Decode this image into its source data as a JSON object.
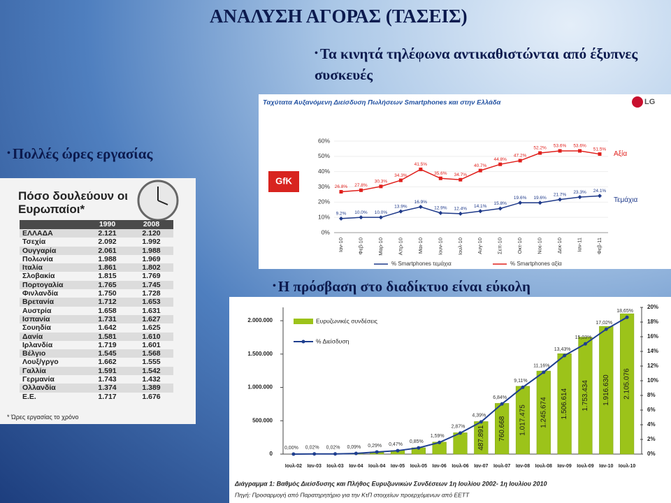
{
  "title": "ΑΝΑΛΥΣΗ ΑΓΟΡΑΣ (ΤΑΣΕΙΣ)",
  "bullets": [
    "Τα κινητά τηλέφωνα αντικαθιστώνται από έξυπνες συσκευές",
    "Πολλές ώρες εργασίας",
    "Η πρόσβαση στο διαδίκτυο είναι εύκολη"
  ],
  "table": {
    "title": "Πόσο δουλεύουν οι Ευρωπαίοι*",
    "header": [
      "1990",
      "2008"
    ],
    "rows": [
      [
        "ΕΛΛΑΔΑ",
        "2.121",
        "2.120"
      ],
      [
        "Τσεχία",
        "2.092",
        "1.992"
      ],
      [
        "Ουγγαρία",
        "2.061",
        "1.988"
      ],
      [
        "Πολωνία",
        "1.988",
        "1.969"
      ],
      [
        "Ιταλία",
        "1.861",
        "1.802"
      ],
      [
        "Σλοβακία",
        "1.815",
        "1.769"
      ],
      [
        "Πορτογαλία",
        "1.765",
        "1.745"
      ],
      [
        "Φινλανδία",
        "1.750",
        "1.728"
      ],
      [
        "Βρετανία",
        "1.712",
        "1.653"
      ],
      [
        "Αυστρία",
        "1.658",
        "1.631"
      ],
      [
        "Ισπανία",
        "1.731",
        "1.627"
      ],
      [
        "Σουηδία",
        "1.642",
        "1.625"
      ],
      [
        "Δανία",
        "1.581",
        "1.610"
      ],
      [
        "Ιρλανδία",
        "1.719",
        "1.601"
      ],
      [
        "Βέλγιο",
        "1.545",
        "1.568"
      ],
      [
        "Λουξ/γργο",
        "1.662",
        "1.555"
      ],
      [
        "Γαλλία",
        "1.591",
        "1.542"
      ],
      [
        "Γερμανία",
        "1.743",
        "1.432"
      ],
      [
        "Ολλανδία",
        "1.374",
        "1.389"
      ],
      [
        "Ε.Ε.",
        "1.717",
        "1.676"
      ]
    ],
    "note": "* Ώρες εργασίας το χρόνο"
  },
  "chart_data": [
    {
      "type": "line",
      "title": "Ταχύτατα Αυξανόμενη Διείσδυση Πωλήσεων Smartphones και στην Ελλάδα",
      "brand": "LG",
      "source": "GfK",
      "categories": [
        "Ιαν-10",
        "Φεβ-10",
        "Μαρ-10",
        "Απρ-10",
        "Μαι-10",
        "Ιουν-10",
        "Ιουλ-10",
        "Αυγ-10",
        "Σεπ-10",
        "Οκτ-10",
        "Νοε-10",
        "Δεκ-10",
        "Ιαν-11",
        "Φεβ-11"
      ],
      "series": [
        {
          "name": "% Smartphones τεμάχια",
          "color": "#1f3a8a",
          "end_label": "Τεμάχια",
          "values": [
            9.2,
            10.0,
            10.0,
            13.9,
            16.9,
            12.9,
            12.4,
            14.1,
            15.8,
            19.6,
            19.6,
            21.7,
            23.3,
            24.1
          ],
          "value_labels": [
            "9.2%",
            "10.0%",
            "10.0%",
            "13.9%",
            "16.9%",
            "12.9%",
            "12.4%",
            "14.1%",
            "15.8%",
            "19.6%",
            "19.6%",
            "21.7%",
            "23.3%",
            "24.1%"
          ]
        },
        {
          "name": "% Smartphones αξία",
          "color": "#e0201c",
          "end_label": "Αξία",
          "values": [
            26.8,
            27.8,
            30.3,
            34.3,
            41.5,
            35.6,
            34.7,
            40.7,
            44.8,
            47.2,
            52.2,
            53.6,
            53.6,
            51.5
          ],
          "value_labels": [
            "26.8%",
            "27.8%",
            "30.3%",
            "34.3%",
            "41.5%",
            "35.6%",
            "34.7%",
            "40.7%",
            "44.8%",
            "47.2%",
            "52.2%",
            "53.6%",
            "53.6%",
            "51.5%"
          ]
        }
      ],
      "ylim": [
        0,
        60
      ],
      "yticks": [
        {
          "value": 0,
          "label": "0%"
        },
        {
          "value": 10,
          "label": "10%"
        },
        {
          "value": 20,
          "label": "20%"
        },
        {
          "value": 30,
          "label": "30%"
        },
        {
          "value": 40,
          "label": "40%"
        },
        {
          "value": 50,
          "label": "50%"
        },
        {
          "value": 60,
          "label": "60%"
        }
      ]
    },
    {
      "type": "bar",
      "caption": "Διάγραμμα 1: Βαθμός Διείσδυσης και Πλήθος Ευρυζωνικών Συνδέσεων 1η Ιουλίου 2002- 1η Ιουλίου 2010",
      "source": "Πηγή: Προσαρμογή από Παρατηρητήριο για την ΚτΠ στοιχείων προερχόμενων από ΕΕΤΤ",
      "categories": [
        "Ιουλ-02",
        "Ιαν-03",
        "Ιουλ-03",
        "Ιαν-04",
        "Ιουλ-04",
        "Ιαν-05",
        "Ιουλ-05",
        "Ιαν-06",
        "Ιουλ-06",
        "Ιαν-07",
        "Ιουλ-07",
        "Ιαν-08",
        "Ιουλ-08",
        "Ιαν-09",
        "Ιουλ-09",
        "Ιαν-10",
        "Ιουλ-10"
      ],
      "series": [
        {
          "name": "Ευρυζωνικές συνδέσεις",
          "color": "#9cc31a",
          "values": [
            0,
            2000,
            2000,
            10000,
            33000,
            53000,
            95000,
            180000,
            320000,
            487891,
            760668,
            1017475,
            1245674,
            1506614,
            1753434,
            1916630,
            2105076
          ],
          "value_labels": [
            null,
            null,
            null,
            null,
            null,
            null,
            null,
            null,
            null,
            "487.891",
            "760.668",
            "1.017.475",
            "1.245.674",
            "1.506.614",
            "1.753.434",
            "1.916.630",
            "2.105.076"
          ]
        },
        {
          "name": "% Διείσδυση",
          "color": "#1f3f8f",
          "axis": "y2",
          "values": [
            0.0,
            0.02,
            0.02,
            0.09,
            0.29,
            0.47,
            0.85,
            1.59,
            2.87,
            4.39,
            6.84,
            9.11,
            11.16,
            13.43,
            15.03,
            17.02,
            18.65
          ],
          "value_labels": [
            "0,00%",
            "0,02%",
            "0,02%",
            "0,09%",
            "0,29%",
            "0,47%",
            "0,85%",
            "1,59%",
            "2,87%",
            "4,39%",
            "6,84%",
            "9,11%",
            "11,16%",
            "13,43%",
            "15,03%",
            "17,02%",
            "18,65%"
          ]
        }
      ],
      "ylim": [
        0,
        2200000
      ],
      "yticks": [
        0,
        {
          "value": 500000,
          "label": "500.000"
        },
        {
          "value": 1000000,
          "label": "1.000.000"
        },
        {
          "value": 1500000,
          "label": "1.500.000"
        },
        {
          "value": 2000000,
          "label": "2.000.000"
        }
      ],
      "y2lim": [
        0,
        20
      ],
      "y2ticks": [
        {
          "value": 0,
          "label": "0%"
        },
        {
          "value": 2,
          "label": "2%"
        },
        {
          "value": 4,
          "label": "4%"
        },
        {
          "value": 6,
          "label": "6%"
        },
        {
          "value": 8,
          "label": "8%"
        },
        {
          "value": 10,
          "label": "10%"
        },
        {
          "value": 12,
          "label": "12%"
        },
        {
          "value": 14,
          "label": "14%"
        },
        {
          "value": 16,
          "label": "16%"
        },
        {
          "value": 18,
          "label": "18%"
        },
        {
          "value": 20,
          "label": "20%"
        }
      ]
    }
  ]
}
